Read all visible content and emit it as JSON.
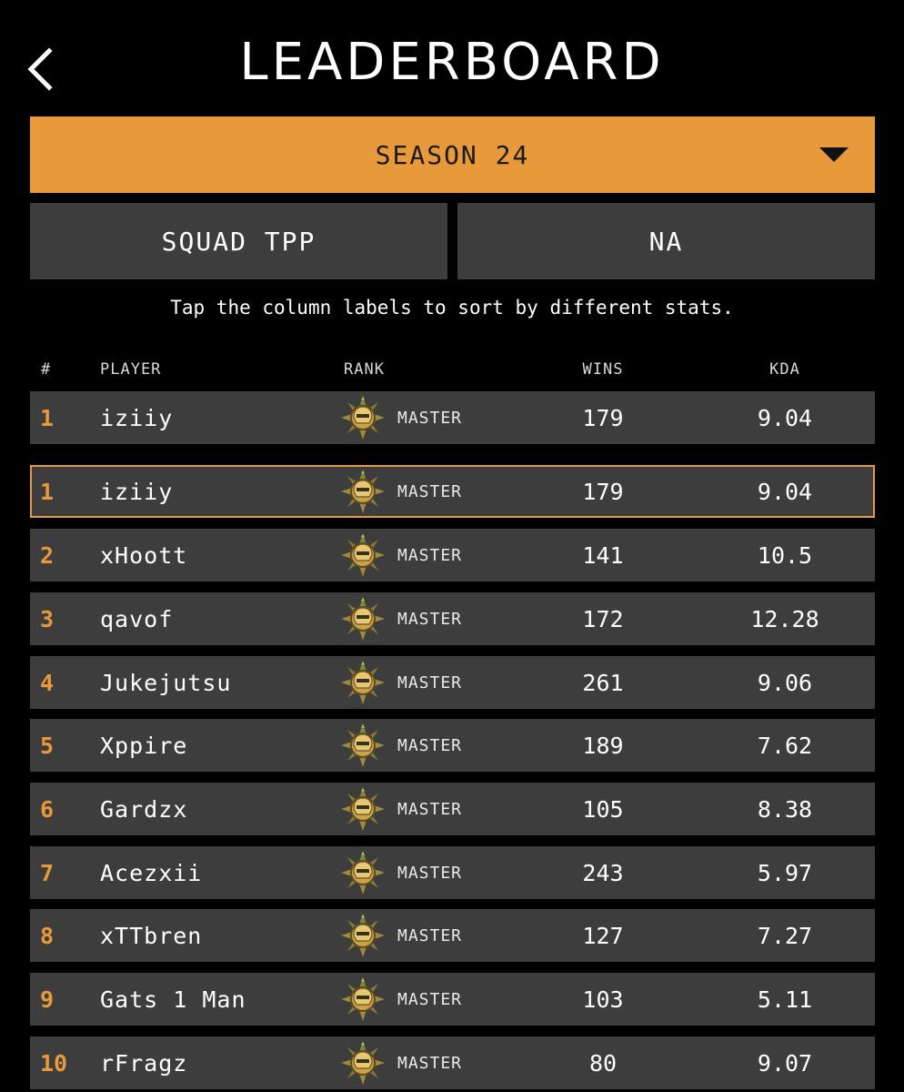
{
  "header": {
    "title": "LEADERBOARD",
    "back_icon": "chevron-left-icon"
  },
  "season": {
    "label": "SEASON 24",
    "caret_icon": "caret-down-icon"
  },
  "filters": {
    "mode": "SQUAD TPP",
    "region": "NA"
  },
  "hint": "Tap the column labels to sort by different stats.",
  "columns": {
    "pos": "#",
    "player": "PLAYER",
    "rank": "RANK",
    "wins": "WINS",
    "kda": "KDA"
  },
  "accent_color": "#E8993A",
  "self_row": {
    "pos": "1",
    "player": "iziiy",
    "rank": "MASTER",
    "wins": "179",
    "kda": "9.04"
  },
  "rows": [
    {
      "pos": "1",
      "player": "iziiy",
      "rank": "MASTER",
      "wins": "179",
      "kda": "9.04"
    },
    {
      "pos": "2",
      "player": "xHoott",
      "rank": "MASTER",
      "wins": "141",
      "kda": "10.5"
    },
    {
      "pos": "3",
      "player": "qavof",
      "rank": "MASTER",
      "wins": "172",
      "kda": "12.28"
    },
    {
      "pos": "4",
      "player": "Jukejutsu",
      "rank": "MASTER",
      "wins": "261",
      "kda": "9.06"
    },
    {
      "pos": "5",
      "player": "Xppire",
      "rank": "MASTER",
      "wins": "189",
      "kda": "7.62"
    },
    {
      "pos": "6",
      "player": "Gardzx",
      "rank": "MASTER",
      "wins": "105",
      "kda": "8.38"
    },
    {
      "pos": "7",
      "player": "Acezxii",
      "rank": "MASTER",
      "wins": "243",
      "kda": "5.97"
    },
    {
      "pos": "8",
      "player": "xTTbren",
      "rank": "MASTER",
      "wins": "127",
      "kda": "7.27"
    },
    {
      "pos": "9",
      "player": "Gats 1 Man",
      "rank": "MASTER",
      "wins": "103",
      "kda": "5.11"
    },
    {
      "pos": "10",
      "player": "rFragz",
      "rank": "MASTER",
      "wins": "80",
      "kda": "9.07"
    }
  ]
}
